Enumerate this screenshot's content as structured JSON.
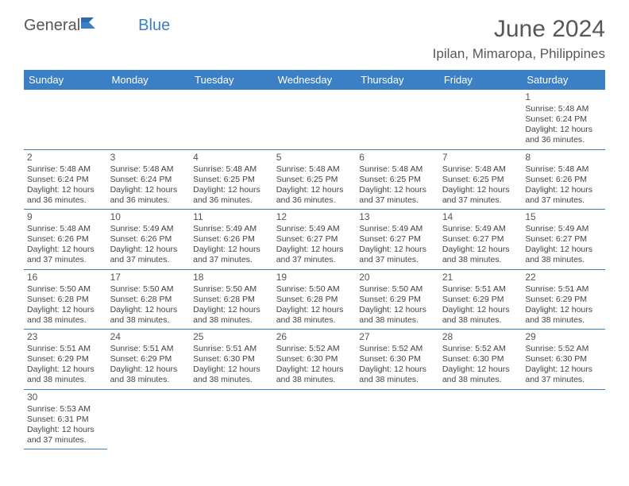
{
  "brand": {
    "a": "General",
    "b": "Blue"
  },
  "title": "June 2024",
  "location": "Ipilan, Mimaropa, Philippines",
  "colors": {
    "header_bg": "#3b7fc4",
    "header_fg": "#ffffff",
    "rule": "#3b7fc4",
    "text": "#444444",
    "title": "#575757"
  },
  "weekdays": [
    "Sunday",
    "Monday",
    "Tuesday",
    "Wednesday",
    "Thursday",
    "Friday",
    "Saturday"
  ],
  "weeks": [
    [
      null,
      null,
      null,
      null,
      null,
      null,
      {
        "n": "1",
        "sr": "Sunrise: 5:48 AM",
        "ss": "Sunset: 6:24 PM",
        "d1": "Daylight: 12 hours",
        "d2": "and 36 minutes."
      }
    ],
    [
      {
        "n": "2",
        "sr": "Sunrise: 5:48 AM",
        "ss": "Sunset: 6:24 PM",
        "d1": "Daylight: 12 hours",
        "d2": "and 36 minutes."
      },
      {
        "n": "3",
        "sr": "Sunrise: 5:48 AM",
        "ss": "Sunset: 6:24 PM",
        "d1": "Daylight: 12 hours",
        "d2": "and 36 minutes."
      },
      {
        "n": "4",
        "sr": "Sunrise: 5:48 AM",
        "ss": "Sunset: 6:25 PM",
        "d1": "Daylight: 12 hours",
        "d2": "and 36 minutes."
      },
      {
        "n": "5",
        "sr": "Sunrise: 5:48 AM",
        "ss": "Sunset: 6:25 PM",
        "d1": "Daylight: 12 hours",
        "d2": "and 36 minutes."
      },
      {
        "n": "6",
        "sr": "Sunrise: 5:48 AM",
        "ss": "Sunset: 6:25 PM",
        "d1": "Daylight: 12 hours",
        "d2": "and 37 minutes."
      },
      {
        "n": "7",
        "sr": "Sunrise: 5:48 AM",
        "ss": "Sunset: 6:25 PM",
        "d1": "Daylight: 12 hours",
        "d2": "and 37 minutes."
      },
      {
        "n": "8",
        "sr": "Sunrise: 5:48 AM",
        "ss": "Sunset: 6:26 PM",
        "d1": "Daylight: 12 hours",
        "d2": "and 37 minutes."
      }
    ],
    [
      {
        "n": "9",
        "sr": "Sunrise: 5:48 AM",
        "ss": "Sunset: 6:26 PM",
        "d1": "Daylight: 12 hours",
        "d2": "and 37 minutes."
      },
      {
        "n": "10",
        "sr": "Sunrise: 5:49 AM",
        "ss": "Sunset: 6:26 PM",
        "d1": "Daylight: 12 hours",
        "d2": "and 37 minutes."
      },
      {
        "n": "11",
        "sr": "Sunrise: 5:49 AM",
        "ss": "Sunset: 6:26 PM",
        "d1": "Daylight: 12 hours",
        "d2": "and 37 minutes."
      },
      {
        "n": "12",
        "sr": "Sunrise: 5:49 AM",
        "ss": "Sunset: 6:27 PM",
        "d1": "Daylight: 12 hours",
        "d2": "and 37 minutes."
      },
      {
        "n": "13",
        "sr": "Sunrise: 5:49 AM",
        "ss": "Sunset: 6:27 PM",
        "d1": "Daylight: 12 hours",
        "d2": "and 37 minutes."
      },
      {
        "n": "14",
        "sr": "Sunrise: 5:49 AM",
        "ss": "Sunset: 6:27 PM",
        "d1": "Daylight: 12 hours",
        "d2": "and 38 minutes."
      },
      {
        "n": "15",
        "sr": "Sunrise: 5:49 AM",
        "ss": "Sunset: 6:27 PM",
        "d1": "Daylight: 12 hours",
        "d2": "and 38 minutes."
      }
    ],
    [
      {
        "n": "16",
        "sr": "Sunrise: 5:50 AM",
        "ss": "Sunset: 6:28 PM",
        "d1": "Daylight: 12 hours",
        "d2": "and 38 minutes."
      },
      {
        "n": "17",
        "sr": "Sunrise: 5:50 AM",
        "ss": "Sunset: 6:28 PM",
        "d1": "Daylight: 12 hours",
        "d2": "and 38 minutes."
      },
      {
        "n": "18",
        "sr": "Sunrise: 5:50 AM",
        "ss": "Sunset: 6:28 PM",
        "d1": "Daylight: 12 hours",
        "d2": "and 38 minutes."
      },
      {
        "n": "19",
        "sr": "Sunrise: 5:50 AM",
        "ss": "Sunset: 6:28 PM",
        "d1": "Daylight: 12 hours",
        "d2": "and 38 minutes."
      },
      {
        "n": "20",
        "sr": "Sunrise: 5:50 AM",
        "ss": "Sunset: 6:29 PM",
        "d1": "Daylight: 12 hours",
        "d2": "and 38 minutes."
      },
      {
        "n": "21",
        "sr": "Sunrise: 5:51 AM",
        "ss": "Sunset: 6:29 PM",
        "d1": "Daylight: 12 hours",
        "d2": "and 38 minutes."
      },
      {
        "n": "22",
        "sr": "Sunrise: 5:51 AM",
        "ss": "Sunset: 6:29 PM",
        "d1": "Daylight: 12 hours",
        "d2": "and 38 minutes."
      }
    ],
    [
      {
        "n": "23",
        "sr": "Sunrise: 5:51 AM",
        "ss": "Sunset: 6:29 PM",
        "d1": "Daylight: 12 hours",
        "d2": "and 38 minutes."
      },
      {
        "n": "24",
        "sr": "Sunrise: 5:51 AM",
        "ss": "Sunset: 6:29 PM",
        "d1": "Daylight: 12 hours",
        "d2": "and 38 minutes."
      },
      {
        "n": "25",
        "sr": "Sunrise: 5:51 AM",
        "ss": "Sunset: 6:30 PM",
        "d1": "Daylight: 12 hours",
        "d2": "and 38 minutes."
      },
      {
        "n": "26",
        "sr": "Sunrise: 5:52 AM",
        "ss": "Sunset: 6:30 PM",
        "d1": "Daylight: 12 hours",
        "d2": "and 38 minutes."
      },
      {
        "n": "27",
        "sr": "Sunrise: 5:52 AM",
        "ss": "Sunset: 6:30 PM",
        "d1": "Daylight: 12 hours",
        "d2": "and 38 minutes."
      },
      {
        "n": "28",
        "sr": "Sunrise: 5:52 AM",
        "ss": "Sunset: 6:30 PM",
        "d1": "Daylight: 12 hours",
        "d2": "and 38 minutes."
      },
      {
        "n": "29",
        "sr": "Sunrise: 5:52 AM",
        "ss": "Sunset: 6:30 PM",
        "d1": "Daylight: 12 hours",
        "d2": "and 37 minutes."
      }
    ],
    [
      {
        "n": "30",
        "sr": "Sunrise: 5:53 AM",
        "ss": "Sunset: 6:31 PM",
        "d1": "Daylight: 12 hours",
        "d2": "and 37 minutes."
      },
      null,
      null,
      null,
      null,
      null,
      null
    ]
  ]
}
